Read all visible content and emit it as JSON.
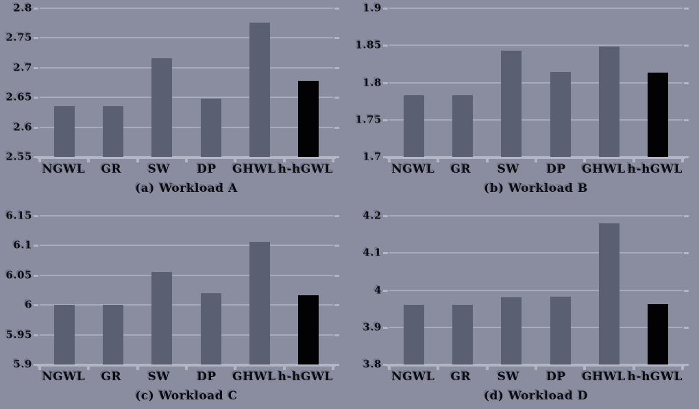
{
  "figure": {
    "description": "Four bar charts comparing wear-leveling schemes across workloads; last scheme highlighted in black",
    "background_color": "#8A8D9F",
    "bar_color": "#5A5F71",
    "highlight_bar_color": "#020204",
    "gridline_color": "#A8ABBA",
    "axis_color": "#B3B6C4",
    "text_color": "#0A0A10",
    "text_shadow_color": "#6E7284"
  },
  "chart_data": [
    {
      "type": "bar",
      "title": "(a) Workload A",
      "categories": [
        "NGWL",
        "GR",
        "SW",
        "DP",
        "GHWL",
        "h-hGWL"
      ],
      "values": [
        2.635,
        2.635,
        2.716,
        2.648,
        2.776,
        2.678
      ],
      "highlight_index": 5,
      "ylim": [
        2.55,
        2.8
      ],
      "yticks": [
        2.55,
        2.6,
        2.65,
        2.7,
        2.75,
        2.8
      ],
      "ytick_labels": [
        "2.55",
        "2.6",
        "2.65",
        "2.7",
        "2.75",
        "2.8"
      ],
      "grid": true,
      "legend": false
    },
    {
      "type": "bar",
      "title": "(b) Workload B",
      "categories": [
        "NGWL",
        "GR",
        "SW",
        "DP",
        "GHWL",
        "h-hGWL"
      ],
      "values": [
        1.783,
        1.783,
        1.843,
        1.814,
        1.848,
        1.813
      ],
      "highlight_index": 5,
      "ylim": [
        1.7,
        1.9
      ],
      "yticks": [
        1.7,
        1.75,
        1.8,
        1.85,
        1.9
      ],
      "ytick_labels": [
        "1.7",
        "1.75",
        "1.8",
        "1.85",
        "1.9"
      ],
      "grid": true,
      "legend": false
    },
    {
      "type": "bar",
      "title": "(c) Workload C",
      "categories": [
        "NGWL",
        "GR",
        "SW",
        "DP",
        "GHWL",
        "h-hGWL"
      ],
      "values": [
        6.0,
        6.0,
        6.056,
        6.02,
        6.106,
        6.016
      ],
      "highlight_index": 5,
      "ylim": [
        5.9,
        6.15
      ],
      "yticks": [
        5.9,
        5.95,
        6,
        6.05,
        6.1,
        6.15
      ],
      "ytick_labels": [
        "5.9",
        "5.95",
        "6",
        "6.05",
        "6.1",
        "6.15"
      ],
      "grid": true,
      "legend": false
    },
    {
      "type": "bar",
      "title": "(d) Workload D",
      "categories": [
        "NGWL",
        "GR",
        "SW",
        "DP",
        "GHWL",
        "h-hGWL"
      ],
      "values": [
        3.96,
        3.96,
        3.98,
        3.982,
        4.18,
        3.962
      ],
      "highlight_index": 5,
      "ylim": [
        3.8,
        4.2
      ],
      "yticks": [
        3.8,
        3.9,
        4,
        4.1,
        4.2
      ],
      "ytick_labels": [
        "3.8",
        "3.9",
        "4",
        "4.1",
        "4.2"
      ],
      "grid": true,
      "legend": false
    }
  ]
}
